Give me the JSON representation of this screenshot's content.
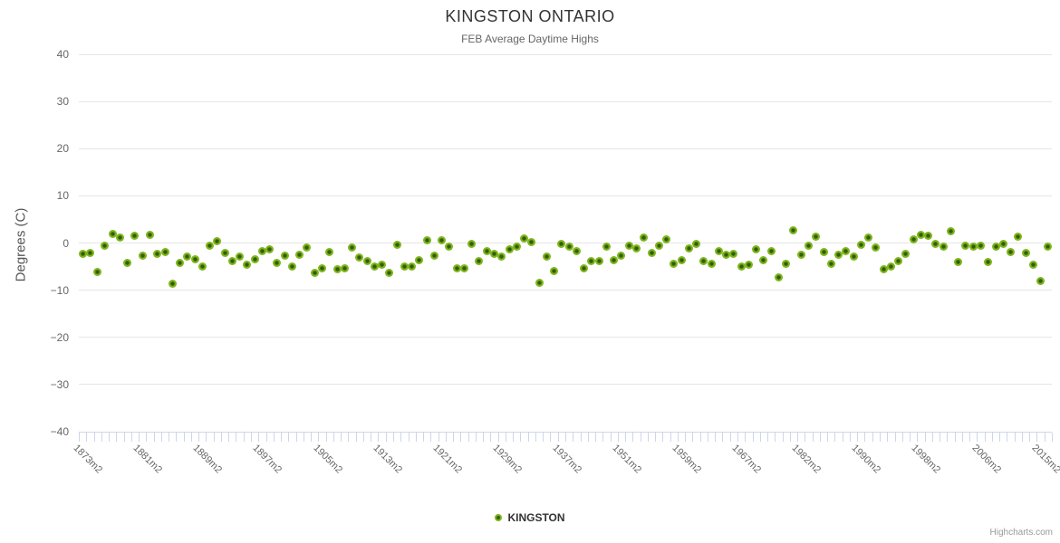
{
  "title": "KINGSTON ONTARIO",
  "subtitle": "FEB Average Daytime Highs",
  "y_axis": {
    "title": "Degrees (C)"
  },
  "legend": {
    "label": "KINGSTON"
  },
  "credits": "Highcharts.com",
  "colors": {
    "marker_outer": "#80b41c",
    "marker_inner": "#2f5f09",
    "gridline": "#e6e6e6",
    "axis_and_ticks": "#ccd6eb",
    "title_text": "#333333",
    "subtitle_text": "#666666",
    "axis_label_text": "#666666"
  },
  "chart_data": {
    "type": "scatter",
    "title": "KINGSTON ONTARIO",
    "subtitle": "FEB Average Daytime Highs",
    "xlabel": "",
    "ylabel": "Degrees (C)",
    "ylim": [
      -40,
      40
    ],
    "y_ticks": [
      40,
      30,
      20,
      10,
      0,
      -10,
      -20,
      -30,
      -40
    ],
    "grid": "horizontal",
    "legend_position": "bottom-center",
    "x_label_interval": 8,
    "x_tick_labels": [
      "1873m2",
      "1881m2",
      "1889m2",
      "1897m2",
      "1905m2",
      "1913m2",
      "1921m2",
      "1929m2",
      "1937m2",
      "1951m2",
      "1959m2",
      "1967m2",
      "1982m2",
      "1990m2",
      "1998m2",
      "2006m2",
      "2015m2"
    ],
    "n_points": 130,
    "series": [
      {
        "name": "KINGSTON",
        "marker_color": "#80b41c",
        "values": [
          -2.3,
          -2.1,
          -6.1,
          -0.5,
          1.9,
          1.2,
          -4.2,
          1.6,
          -2.6,
          1.7,
          -2.3,
          -2.0,
          -8.7,
          -4.2,
          -2.9,
          -3.4,
          -5.0,
          -0.6,
          0.3,
          -2.1,
          -3.9,
          -2.9,
          -4.6,
          -3.4,
          -1.7,
          -1.3,
          -4.2,
          -2.6,
          -4.9,
          -2.4,
          -1.0,
          -6.3,
          -5.4,
          -1.9,
          -5.5,
          -5.3,
          -1.0,
          -3.0,
          -3.9,
          -4.9,
          -4.6,
          -6.3,
          -0.4,
          -5.0,
          -5.0,
          -3.6,
          0.6,
          -2.6,
          0.6,
          -0.8,
          -5.3,
          -5.3,
          -0.1,
          -3.9,
          -1.7,
          -2.3,
          -2.9,
          -1.4,
          -0.7,
          1.0,
          0.1,
          -8.4,
          -2.8,
          -5.9,
          -0.1,
          -0.8,
          -1.8,
          -5.3,
          -3.9,
          -3.9,
          -0.8,
          -3.6,
          -2.6,
          -0.6,
          -1.2,
          1.2,
          -2.1,
          -0.6,
          0.8,
          -4.4,
          -3.6,
          -1.2,
          -0.2,
          -3.9,
          -4.4,
          -1.7,
          -2.4,
          -2.3,
          -5.0,
          -4.6,
          -1.4,
          -3.6,
          -1.8,
          -7.3,
          -4.4,
          2.6,
          -2.4,
          -0.6,
          1.4,
          -1.9,
          -4.4,
          -2.4,
          -1.7,
          -2.9,
          -0.3,
          1.2,
          -1.0,
          -5.5,
          -5.0,
          -3.9,
          -2.3,
          0.8,
          1.7,
          1.6,
          -0.2,
          -0.8,
          2.5,
          -4.0,
          -0.5,
          -0.8,
          -0.6,
          -4.0,
          -0.8,
          -0.2,
          -2.0,
          1.4,
          -2.2,
          -4.6,
          -8.0,
          -0.7
        ]
      }
    ]
  }
}
